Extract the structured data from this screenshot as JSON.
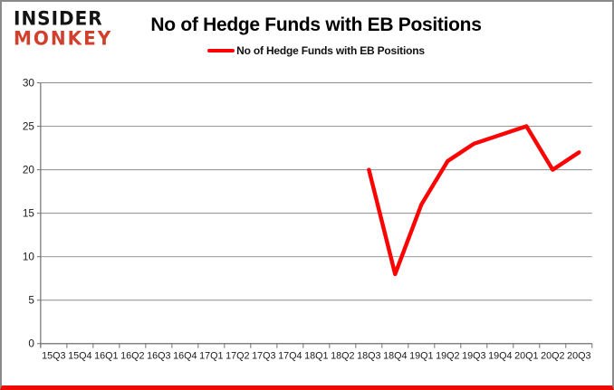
{
  "brand": {
    "line1": "INSIDER",
    "line2": "MONKEY"
  },
  "header": {
    "title": "No of Hedge Funds with EB Positions"
  },
  "legend": {
    "label": "No of Hedge Funds with EB Positions"
  },
  "chart_data": {
    "type": "line",
    "title": "No of Hedge Funds with EB Positions",
    "categories": [
      "15Q3",
      "15Q4",
      "16Q1",
      "16Q2",
      "16Q3",
      "16Q4",
      "17Q1",
      "17Q2",
      "17Q3",
      "17Q4",
      "18Q1",
      "18Q2",
      "18Q3",
      "18Q4",
      "19Q1",
      "19Q2",
      "19Q3",
      "19Q4",
      "20Q1",
      "20Q2",
      "20Q3"
    ],
    "series": [
      {
        "name": "No of Hedge Funds with EB Positions",
        "color": "#fb0404",
        "values": [
          null,
          null,
          null,
          null,
          null,
          null,
          null,
          null,
          null,
          null,
          null,
          null,
          20,
          8,
          16,
          21,
          23,
          24,
          25,
          20,
          22
        ]
      }
    ],
    "xlabel": "",
    "ylabel": "",
    "ylim": [
      0,
      30
    ],
    "ytick_step": 5,
    "grid": true,
    "legend_position": "top"
  },
  "colors": {
    "series_line": "#fb0404",
    "gridline": "#8c8c8c",
    "axis": "#6e6e6e",
    "tick_label": "#1a1a1a",
    "brand_black": "#141414",
    "brand_red": "#d0402c",
    "card_border": "#8a8a8a",
    "bottom_bar": "#ef0b04"
  }
}
